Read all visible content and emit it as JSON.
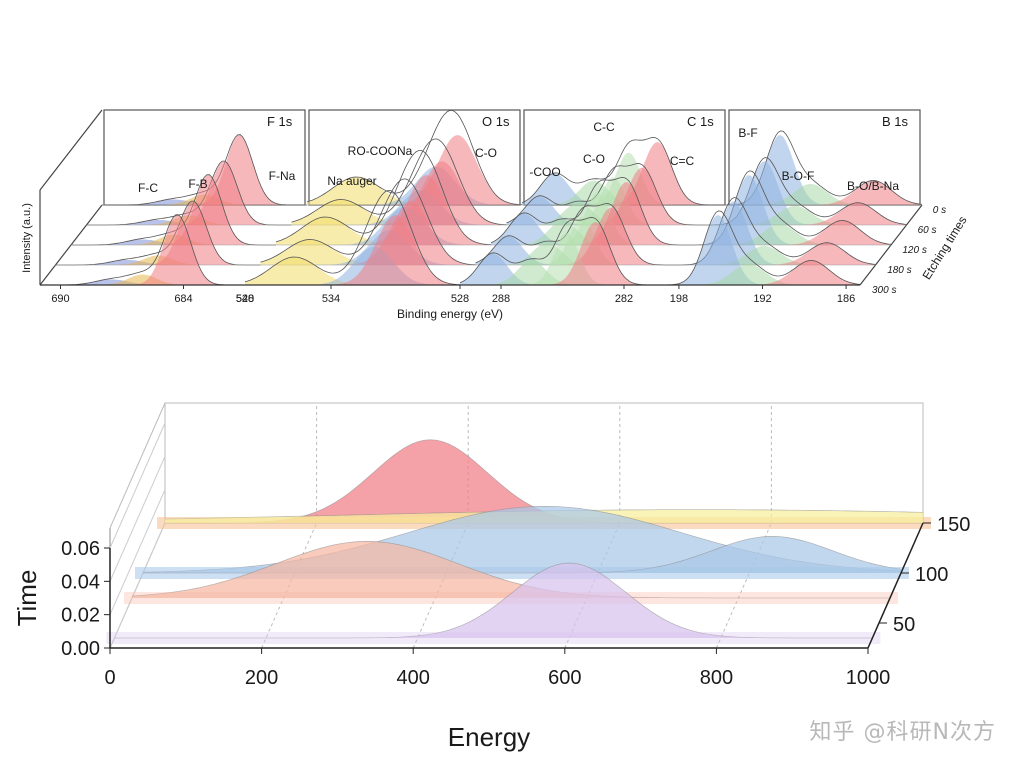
{
  "watermark": "知乎 @科研N次方",
  "chart_data": [
    {
      "type": "area",
      "title": "",
      "description_panels": [
        "F 1s",
        "O 1s",
        "C 1s",
        "B 1s"
      ],
      "ylabel": "Intensity (a.u.)",
      "xlabel": "Binding energy (eV)",
      "zlabel": "Etching times",
      "etch_times": [
        "0 s",
        "60 s",
        "120 s",
        "180 s",
        "300 s"
      ],
      "panels": [
        {
          "name": "F 1s",
          "xlim": [
            691,
            681
          ],
          "ticks": [
            {
              "v": 690,
              "label": "690"
            },
            {
              "v": 684,
              "label": "684"
            }
          ],
          "edge_label": "540",
          "peaks": [
            {
              "label": "F-C",
              "center": 687.5,
              "width": 0.8,
              "amp": 0.08,
              "color": "#7f8fd6"
            },
            {
              "label": "F-B",
              "center": 686.0,
              "width": 0.7,
              "amp": 0.15,
              "color": "#e8b64a"
            },
            {
              "label": "F-Na",
              "center": 684.3,
              "width": 0.65,
              "amp": 1.0,
              "color": "#f07d85"
            }
          ]
        },
        {
          "name": "O 1s",
          "xlim": [
            538,
            528
          ],
          "ticks": [
            {
              "v": 534,
              "label": "534"
            },
            {
              "v": 528,
              "label": "528"
            }
          ],
          "edge_label": "",
          "peaks": [
            {
              "label": "Na auger",
              "center": 535.7,
              "width": 1.1,
              "amp": 0.4,
              "color": "#f3dc6a"
            },
            {
              "label": "RO-COONa",
              "center": 532.0,
              "width": 0.9,
              "amp": 0.55,
              "color": "#8fb2e0"
            },
            {
              "label": "C-O",
              "center": 531.0,
              "width": 0.9,
              "amp": 1.0,
              "color": "#f07d85"
            }
          ]
        },
        {
          "name": "C 1s",
          "xlim": [
            290,
            280
          ],
          "ticks": [
            {
              "v": 288,
              "label": "288"
            },
            {
              "v": 282,
              "label": "282"
            }
          ],
          "edge_label": "",
          "peaks": [
            {
              "label": "-COO",
              "center": 288.4,
              "width": 0.7,
              "amp": 0.45,
              "color": "#8fb2e0"
            },
            {
              "label": "C-O",
              "center": 286.5,
              "width": 0.7,
              "amp": 0.35,
              "color": "#a7d8a6"
            },
            {
              "label": "C-C",
              "center": 284.8,
              "width": 0.6,
              "amp": 0.75,
              "color": "#b6e0b0"
            },
            {
              "label": "C=C",
              "center": 283.4,
              "width": 0.7,
              "amp": 0.9,
              "color": "#f07d85"
            }
          ]
        },
        {
          "name": "B 1s",
          "xlim": [
            199,
            185
          ],
          "ticks": [
            {
              "v": 198,
              "label": "198"
            },
            {
              "v": 192,
              "label": "192"
            },
            {
              "v": 186,
              "label": "186"
            }
          ],
          "edge_label": "",
          "peaks": [
            {
              "label": "B-F",
              "center": 195.2,
              "width": 1.0,
              "amp": 1.0,
              "color": "#8fb2e0"
            },
            {
              "label": "B-O-F",
              "center": 193.0,
              "width": 1.2,
              "amp": 0.3,
              "color": "#a7d8a6"
            },
            {
              "label": "B-O/B-Na",
              "center": 188.5,
              "width": 1.3,
              "amp": 0.35,
              "color": "#f07d85"
            }
          ]
        }
      ]
    },
    {
      "type": "area",
      "title": "",
      "xlabel": "Energy",
      "ylabel": "Time",
      "zlabel": "",
      "xlim": [
        0,
        1000
      ],
      "ylim": [
        0,
        0.06
      ],
      "zlim": [
        25,
        150
      ],
      "xticks": [
        0,
        200,
        400,
        600,
        800,
        1000
      ],
      "xtick_labels": [
        "0",
        "200",
        "400",
        "600",
        "800",
        "1000"
      ],
      "yticks": [
        0,
        0.02,
        0.04,
        0.06
      ],
      "ytick_labels": [
        "0.00",
        "0.02",
        "0.04",
        "0.06"
      ],
      "zticks": [
        50,
        100,
        150
      ],
      "ztick_labels": [
        "50",
        "100",
        "150"
      ],
      "series": [
        {
          "name": "pink",
          "z": 150,
          "center": 350,
          "sigma": 75,
          "amp": 0.05,
          "color": "#f07d85"
        },
        {
          "name": "yellow",
          "z": 150,
          "center": 700,
          "sigma": 450,
          "amp": 0.008,
          "color": "#f8ef9c"
        },
        {
          "name": "blue",
          "z": 100,
          "center": 530,
          "sigma": 180,
          "amp": 0.04,
          "color": "#a9c8e8"
        },
        {
          "name": "blue-2",
          "z": 100,
          "center": 830,
          "sigma": 80,
          "amp": 0.022,
          "color": "#a9c8e8"
        },
        {
          "name": "pink-outline",
          "z": 75,
          "center": 310,
          "sigma": 120,
          "amp": 0.034,
          "color": "#f5b7a2"
        },
        {
          "name": "violet",
          "z": 35,
          "center": 600,
          "sigma": 75,
          "amp": 0.045,
          "color": "#d8c2ef"
        }
      ]
    }
  ]
}
